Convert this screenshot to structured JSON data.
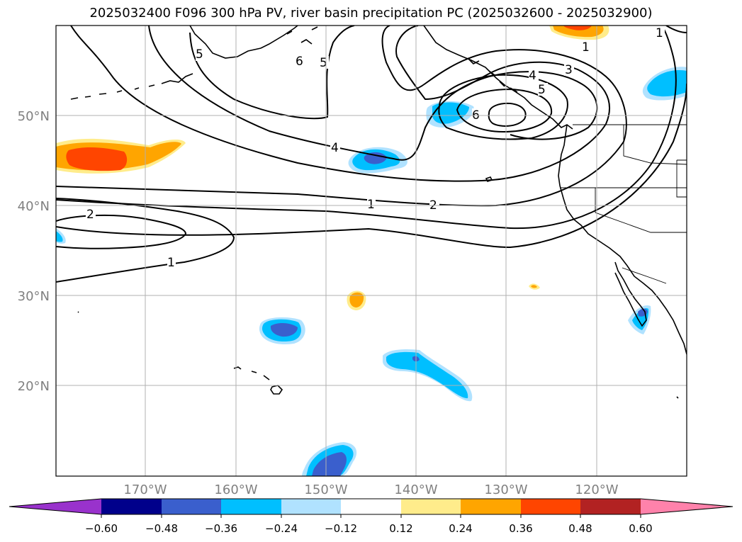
{
  "title": "2025032400 F096 300 hPa PV, river basin precipitation PC (2025032600 - 2025032900)",
  "latitude_labels": [
    "50°N",
    "40°N",
    "30°N",
    "20°N"
  ],
  "longitude_labels": [
    "170°W",
    "160°W",
    "150°W",
    "140°W",
    "130°W",
    "120°W"
  ],
  "pv_contour_labels": [
    "1",
    "1",
    "1",
    "1",
    "2",
    "2",
    "3",
    "4",
    "4",
    "5",
    "5",
    "5",
    "6",
    "6"
  ],
  "colorbar": {
    "tick_labels": [
      "−0.60",
      "−0.48",
      "−0.36",
      "−0.24",
      "−0.12",
      "0.12",
      "0.24",
      "0.36",
      "0.48",
      "0.60"
    ],
    "colors": [
      "#9932CC",
      "#00008B",
      "#3A5FCD",
      "#00BFFF",
      "#B0E2FF",
      "#FFFFFF",
      "#FFEC8B",
      "#FFA500",
      "#FF4500",
      "#B22222",
      "#FF82AB"
    ]
  }
}
